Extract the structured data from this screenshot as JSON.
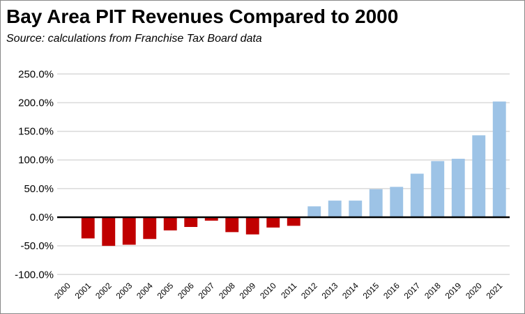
{
  "chart_data": {
    "type": "bar",
    "title": "Bay Area PIT Revenues Compared to 2000",
    "subtitle": "Source:  calculations from Franchise Tax Board data",
    "xlabel": "",
    "ylabel": "",
    "ylim": [
      -100,
      250
    ],
    "yticks": [
      -100,
      -50,
      0,
      50,
      100,
      150,
      200,
      250
    ],
    "ytick_labels": [
      "-100.0%",
      "-50.0%",
      "0.0%",
      "50.0%",
      "100.0%",
      "150.0%",
      "200.0%",
      "250.0%"
    ],
    "grid": true,
    "categories": [
      "2000",
      "2001",
      "2002",
      "2003",
      "2004",
      "2005",
      "2006",
      "2007",
      "2008",
      "2009",
      "2010",
      "2011",
      "2012",
      "2013",
      "2014",
      "2015",
      "2016",
      "2017",
      "2018",
      "2019",
      "2020",
      "2021"
    ],
    "values": [
      0,
      -37,
      -50,
      -48,
      -38,
      -23,
      -17,
      -6,
      -26,
      -30,
      -18,
      -15,
      19,
      29,
      29,
      49,
      53,
      76,
      98,
      102,
      143,
      202
    ],
    "colors": {
      "negative": "#c00000",
      "positive": "#9dc3e6",
      "grid": "#d9d9d9",
      "axis": "#000000"
    }
  }
}
